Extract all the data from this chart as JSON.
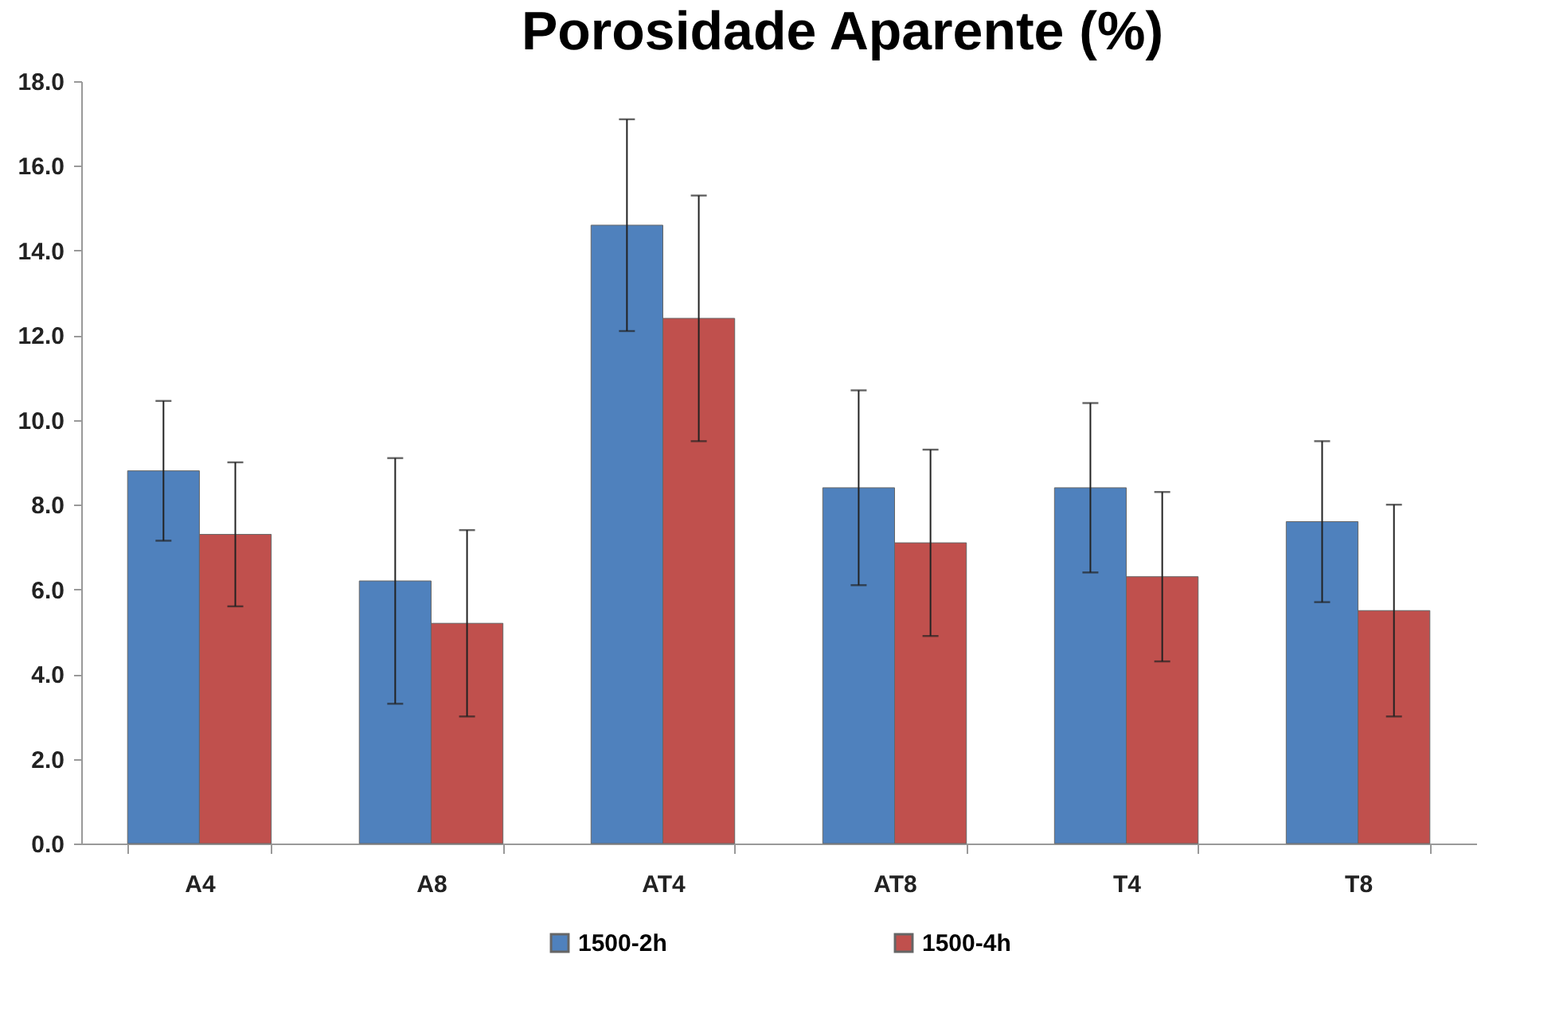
{
  "chart_data": {
    "type": "bar",
    "title": "Porosidade Aparente (%)",
    "categories": [
      "A4",
      "A8",
      "AT4",
      "AT8",
      "T4",
      "T8"
    ],
    "series": [
      {
        "name": "1500-2h",
        "color": "#4f81bd",
        "values": [
          8.8,
          6.2,
          14.6,
          8.4,
          8.4,
          7.6
        ],
        "errors": [
          1.65,
          2.9,
          2.5,
          2.3,
          2.0,
          1.9
        ]
      },
      {
        "name": "1500-4h",
        "color": "#c0504d",
        "values": [
          7.3,
          5.2,
          12.4,
          7.1,
          6.3,
          5.5
        ],
        "errors": [
          1.7,
          2.2,
          2.9,
          2.2,
          2.0,
          2.5
        ]
      }
    ],
    "ylim": [
      0,
      18
    ],
    "yticks": [
      {
        "value": 0,
        "label": "0.0"
      },
      {
        "value": 2,
        "label": "2.0"
      },
      {
        "value": 4,
        "label": "4.0"
      },
      {
        "value": 6,
        "label": "6.0"
      },
      {
        "value": 8,
        "label": "8.0"
      },
      {
        "value": 10,
        "label": "10.0"
      },
      {
        "value": 12,
        "label": "12.0"
      },
      {
        "value": 14,
        "label": "14.0"
      },
      {
        "value": 16,
        "label": "16.0"
      },
      {
        "value": 18,
        "label": "18.0"
      }
    ],
    "grid": false,
    "legend": "bottom"
  }
}
